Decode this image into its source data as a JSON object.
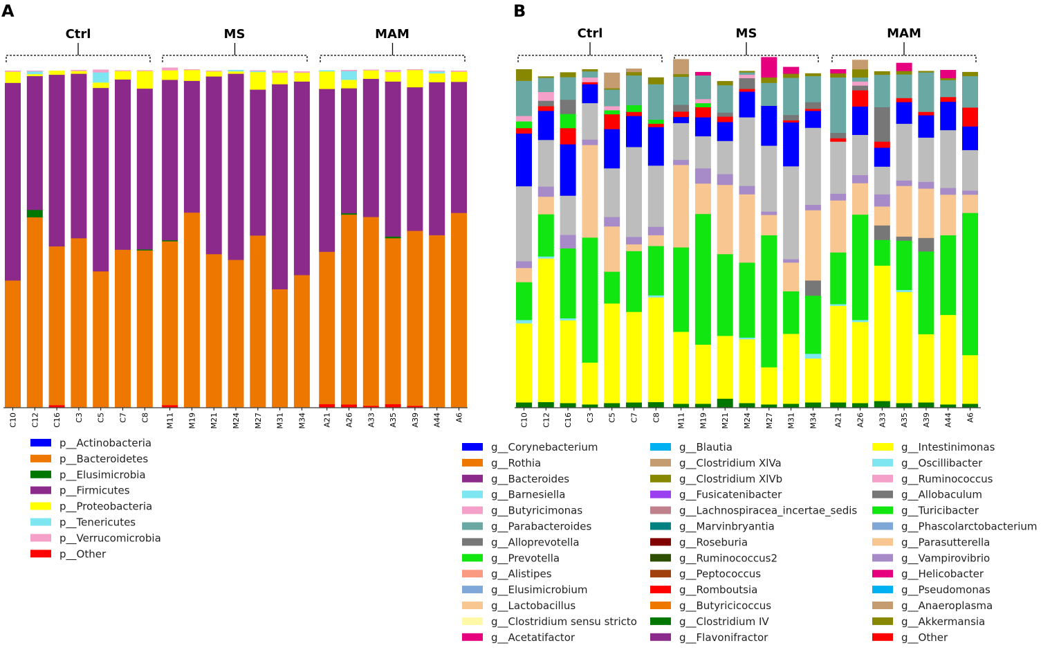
{
  "panels": {
    "a_label": "A",
    "b_label": "B"
  },
  "groups": [
    "Ctrl",
    "MS",
    "MAM"
  ],
  "samples": [
    [
      "C10",
      "C12",
      "C16",
      "C3",
      "C5",
      "C7",
      "C8"
    ],
    [
      "M11",
      "M19",
      "M21",
      "M24",
      "M27",
      "M31",
      "M34"
    ],
    [
      "A21",
      "A26",
      "A33",
      "A35",
      "A39",
      "A44",
      "A6"
    ]
  ],
  "chart_data": [
    {
      "type": "bar",
      "stacked": true,
      "title": "",
      "ylim": [
        0,
        100
      ],
      "categories": [
        "C10",
        "C12",
        "C16",
        "C3",
        "C5",
        "C7",
        "C8",
        "M11",
        "M19",
        "M21",
        "M24",
        "M27",
        "M31",
        "M34",
        "A21",
        "A26",
        "A33",
        "A35",
        "A39",
        "A44",
        "A6"
      ],
      "series": [
        {
          "name": "p__Other",
          "color": "#FF0000",
          "values": [
            0,
            0,
            0.6,
            0,
            0,
            0,
            0,
            0.6,
            0,
            0,
            0,
            0,
            0,
            0,
            0.9,
            0.8,
            0.4,
            0.9,
            0.4,
            0,
            0
          ]
        },
        {
          "name": "p__Actinobacteria",
          "color": "#0000FF",
          "values": [
            0,
            0,
            0,
            0,
            0,
            0,
            0,
            0,
            0,
            0,
            0,
            0,
            0,
            0,
            0,
            0,
            0,
            0,
            0,
            0,
            0
          ]
        },
        {
          "name": "p__Bacteroidetes",
          "color": "#EE7700",
          "values": [
            37.5,
            56.2,
            47.0,
            50.0,
            40.2,
            46.6,
            46.4,
            48.5,
            57.6,
            45.3,
            43.6,
            50.8,
            34.9,
            39.1,
            45.1,
            56.2,
            55.9,
            49.1,
            51.8,
            50.9,
            57.5
          ]
        },
        {
          "name": "p__Elusimicrobia",
          "color": "#007700",
          "values": [
            0,
            2.2,
            0,
            0,
            0,
            0,
            0.3,
            0.3,
            0,
            0,
            0,
            0,
            0,
            0,
            0,
            0.4,
            0,
            0.5,
            0,
            0,
            0
          ]
        },
        {
          "name": "p__Firmicutes",
          "color": "#8B2A8B",
          "values": [
            58.5,
            39.6,
            50.8,
            48.7,
            54.3,
            50.4,
            47.6,
            47.5,
            39.0,
            52.6,
            55.1,
            43.2,
            60.7,
            57.3,
            48.2,
            37.0,
            40.9,
            45.9,
            42.5,
            45.3,
            38.8
          ]
        },
        {
          "name": "p__Proteobacteria",
          "color": "#FFFF00",
          "values": [
            3.3,
            0.6,
            1.2,
            0.8,
            1.6,
            2.5,
            5.2,
            2.8,
            3.2,
            1.5,
            0.7,
            5.2,
            3.4,
            2.6,
            5.2,
            2.5,
            2.5,
            2.8,
            5.1,
            2.6,
            3.0
          ]
        },
        {
          "name": "p__Tenericutes",
          "color": "#7DE6F0",
          "values": [
            0,
            0.8,
            0,
            0,
            3.0,
            0,
            0,
            0,
            0,
            0,
            0.4,
            0.3,
            0,
            0,
            0.3,
            2.6,
            0,
            0,
            0,
            0.6,
            0
          ]
        },
        {
          "name": "p__Verrucomicrobia",
          "color": "#F5A0C8",
          "values": [
            0.3,
            0.2,
            0,
            0.3,
            0.8,
            0.2,
            0.2,
            0.8,
            0.2,
            0.2,
            0,
            0.2,
            0.6,
            0.4,
            0,
            0.3,
            0.2,
            0.6,
            0.2,
            0.2,
            0.3
          ]
        }
      ]
    },
    {
      "type": "bar",
      "stacked": true,
      "title": "",
      "ylim": [
        0,
        100
      ],
      "categories": [
        "C10",
        "C12",
        "C16",
        "C3",
        "C5",
        "C7",
        "C8",
        "M11",
        "M19",
        "M21",
        "M24",
        "M27",
        "M31",
        "M34",
        "A21",
        "A26",
        "A33",
        "A35",
        "A39",
        "A44",
        "A6"
      ],
      "series": [
        {
          "name": "g__Clostridium IV",
          "color": "#007700",
          "values": [
            1.4,
            1.5,
            1.2,
            0.8,
            1.2,
            1.4,
            1.5,
            1.0,
            1.0,
            2.5,
            1.2,
            0.8,
            1.0,
            1.4,
            1.4,
            1.2,
            1.8,
            1.2,
            1.4,
            0.8,
            1.0
          ]
        },
        {
          "name": "g__Intestinimonas",
          "color": "#FFFF00",
          "values": [
            23.4,
            42.5,
            24.5,
            12.4,
            29.5,
            26.8,
            31.0,
            21.3,
            17.5,
            18.6,
            18.9,
            11.0,
            20.7,
            13.0,
            28.6,
            24.0,
            40.1,
            32.9,
            20.2,
            26.5,
            14.4
          ]
        },
        {
          "name": "g__Oscillibacter",
          "color": "#7DE6F0",
          "values": [
            1.0,
            0.6,
            0.6,
            0,
            0,
            0,
            0.6,
            0,
            0,
            0,
            0.5,
            0,
            0,
            1.4,
            0.5,
            0.6,
            0,
            0.6,
            0,
            0,
            0
          ]
        },
        {
          "name": "g__Turicibacter",
          "color": "#11E611",
          "values": [
            11.2,
            12.5,
            20.7,
            37.0,
            9.4,
            18.0,
            14.6,
            25.0,
            38.7,
            24.2,
            22.2,
            39.1,
            12.6,
            17.2,
            15.3,
            31.2,
            7.6,
            14.6,
            24.5,
            23.6,
            42.1
          ]
        },
        {
          "name": "g__Allobaculum",
          "color": "#777777",
          "values": [
            0,
            0,
            0,
            0,
            0,
            0,
            0,
            0,
            0,
            0,
            0,
            0,
            0,
            4.5,
            0,
            0,
            4.3,
            1.2,
            4.0,
            0,
            0
          ]
        },
        {
          "name": "g__Parasutterella",
          "color": "#F8C690",
          "values": [
            4.2,
            5.2,
            0,
            27.4,
            13.4,
            2.0,
            3.2,
            24.4,
            9.0,
            20.5,
            20.2,
            6.0,
            8.5,
            20.8,
            15.4,
            9.3,
            5.6,
            15.0,
            14.6,
            12.0,
            5.4
          ]
        },
        {
          "name": "g__Vampirovibrio",
          "color": "#A78BC8",
          "values": [
            2.0,
            3.0,
            4.0,
            1.6,
            2.8,
            2.2,
            2.5,
            1.5,
            4.5,
            3.2,
            2.5,
            1.0,
            1.0,
            1.6,
            2.0,
            2.4,
            3.6,
            1.6,
            2.0,
            2.0,
            1.2
          ]
        },
        {
          "name": "g__Barnesiella",
          "color": "#BDBDBD",
          "values": [
            22.2,
            13.8,
            11.6,
            10.8,
            14.4,
            26.6,
            18.1,
            10.9,
            9.5,
            9.8,
            20.3,
            19.5,
            27.5,
            22.8,
            15.4,
            11.9,
            8.2,
            16.8,
            13.1,
            17.1,
            12.0
          ]
        },
        {
          "name": "g__Corynebacterium",
          "color": "#0000FF",
          "values": [
            15.6,
            8.6,
            15.2,
            5.6,
            11.6,
            9.2,
            11.4,
            1.8,
            5.6,
            5.6,
            7.6,
            11.8,
            13.0,
            5.0,
            0,
            8.4,
            5.6,
            6.4,
            6.6,
            8.4,
            7.0
          ]
        },
        {
          "name": "g__Other",
          "color": "#FF0000",
          "values": [
            1.6,
            1.4,
            4.8,
            0.6,
            4.4,
            1.2,
            1.0,
            1.6,
            3.0,
            1.6,
            0.8,
            0,
            0.6,
            0.6,
            1.0,
            4.8,
            1.8,
            1.2,
            1.0,
            1.4,
            5.6
          ]
        },
        {
          "name": "g__Prevotella",
          "color": "#11E611",
          "values": [
            2.0,
            0,
            4.2,
            0,
            1.2,
            2.0,
            1.2,
            0,
            1.2,
            0,
            0,
            0,
            0,
            0,
            0,
            0,
            0,
            0,
            0,
            0,
            0
          ]
        },
        {
          "name": "g__Alloprevotella",
          "color": "#777777",
          "values": [
            0,
            1.6,
            4.2,
            0,
            0,
            0,
            0,
            2.0,
            0,
            1.2,
            3.2,
            0,
            1.6,
            2.0,
            1.6,
            1.4,
            10.2,
            0,
            0,
            0,
            0
          ]
        },
        {
          "name": "g__Butyricimonas",
          "color": "#F5A0C8",
          "values": [
            1.6,
            2.6,
            0,
            1.4,
            1.2,
            0,
            0,
            0,
            1.2,
            0,
            1.0,
            0,
            0,
            0,
            0,
            1.2,
            0,
            0,
            0,
            0,
            0
          ]
        },
        {
          "name": "g__Parabacteroides",
          "color": "#6AA8A3",
          "values": [
            10.4,
            4.2,
            6.7,
            1.8,
            4.9,
            8.8,
            10.5,
            8.3,
            7.0,
            8.1,
            0.7,
            6.8,
            11.0,
            7.7,
            16.4,
            1.2,
            9.6,
            7.0,
            11.7,
            5.0,
            9.3
          ]
        },
        {
          "name": "g__Akkermansia",
          "color": "#888800",
          "values": [
            3.4,
            0.4,
            1.4,
            0.6,
            0.4,
            1.0,
            2.0,
            0.8,
            0,
            1.2,
            0.4,
            1.6,
            1.2,
            0.8,
            1.2,
            2.4,
            1.0,
            1.0,
            0.4,
            0.6,
            1.2
          ]
        },
        {
          "name": "g__Anaeroplasma",
          "color": "#C49C70",
          "values": [
            0,
            0,
            0,
            0,
            4.6,
            1.0,
            0,
            4.4,
            0,
            0,
            0,
            0,
            0,
            0,
            0,
            2.8,
            0,
            0,
            0,
            0,
            0
          ]
        },
        {
          "name": "g__Helicobacter",
          "color": "#E6007E",
          "values": [
            0,
            0,
            0,
            0,
            0,
            0,
            0,
            0,
            1.0,
            0,
            0,
            6.0,
            2.0,
            0,
            1.2,
            0,
            0,
            2.4,
            0,
            2.4,
            0
          ]
        }
      ]
    }
  ],
  "legendA": [
    {
      "label": "p__Actinobacteria",
      "color": "#0000FF"
    },
    {
      "label": "p__Bacteroidetes",
      "color": "#EE7700"
    },
    {
      "label": "p__Elusimicrobia",
      "color": "#007700"
    },
    {
      "label": "p__Firmicutes",
      "color": "#8B2A8B"
    },
    {
      "label": "p__Proteobacteria",
      "color": "#FFFF00"
    },
    {
      "label": "p__Tenericutes",
      "color": "#7DE6F0"
    },
    {
      "label": "p__Verrucomicrobia",
      "color": "#F5A0C8"
    },
    {
      "label": "p__Other",
      "color": "#FF0000"
    }
  ],
  "legendB": [
    [
      {
        "label": "g__Corynebacterium",
        "color": "#0000FF"
      },
      {
        "label": "g__Rothia",
        "color": "#EE7700"
      },
      {
        "label": "g__Bacteroides",
        "color": "#8B2A8B"
      },
      {
        "label": "g__Barnesiella",
        "color": "#7DE6F0"
      },
      {
        "label": "g__Butyricimonas",
        "color": "#F5A0C8"
      },
      {
        "label": "g__Parabacteroides",
        "color": "#6AA8A3"
      },
      {
        "label": "g__Alloprevotella",
        "color": "#777777"
      },
      {
        "label": "g__Prevotella",
        "color": "#11E611"
      },
      {
        "label": "g__Alistipes",
        "color": "#FA9A80"
      },
      {
        "label": "g__Elusimicrobium",
        "color": "#7FA8D8"
      },
      {
        "label": "g__Lactobacillus",
        "color": "#F8C690"
      },
      {
        "label": "g__Clostridium sensu stricto",
        "color": "#FFF9A8"
      },
      {
        "label": "g__Acetatifactor",
        "color": "#E6007E"
      }
    ],
    [
      {
        "label": "g__Blautia",
        "color": "#00B0F0"
      },
      {
        "label": "g__Clostridium XlVa",
        "color": "#C49C70"
      },
      {
        "label": "g__Clostridium XlVb",
        "color": "#888800"
      },
      {
        "label": "g__Fusicatenibacter",
        "color": "#9A40F0"
      },
      {
        "label": "g__Lachnospiracea_incertae_sedis",
        "color": "#C0808C"
      },
      {
        "label": "g__Marvinbryantia",
        "color": "#008080"
      },
      {
        "label": "g__Roseburia",
        "color": "#800000"
      },
      {
        "label": "g__Ruminococcus2",
        "color": "#2F4F00"
      },
      {
        "label": "g__Peptococcus",
        "color": "#A0400C"
      },
      {
        "label": "g__Romboutsia",
        "color": "#FF0000"
      },
      {
        "label": "g__Butyricicoccus",
        "color": "#EE7700"
      },
      {
        "label": "g__Clostridium IV",
        "color": "#007700"
      },
      {
        "label": "g__Flavonifractor",
        "color": "#8B2A8B"
      }
    ],
    [
      {
        "label": "g__Intestinimonas",
        "color": "#FFFF00"
      },
      {
        "label": "g__Oscillibacter",
        "color": "#7DE6F0"
      },
      {
        "label": "g__Ruminococcus",
        "color": "#F5A0C8"
      },
      {
        "label": "g__Allobaculum",
        "color": "#777777"
      },
      {
        "label": "g__Turicibacter",
        "color": "#11E611"
      },
      {
        "label": "g__Phascolarctobacterium",
        "color": "#7FA8D8"
      },
      {
        "label": "g__Parasutterella",
        "color": "#F8C690"
      },
      {
        "label": "g__Vampirovibrio",
        "color": "#A78BC8"
      },
      {
        "label": "g__Helicobacter",
        "color": "#E6007E"
      },
      {
        "label": "g__Pseudomonas",
        "color": "#00B0F0"
      },
      {
        "label": "g__Anaeroplasma",
        "color": "#C49C70"
      },
      {
        "label": "g__Akkermansia",
        "color": "#888800"
      },
      {
        "label": "g__Other",
        "color": "#FF0000"
      }
    ]
  ]
}
